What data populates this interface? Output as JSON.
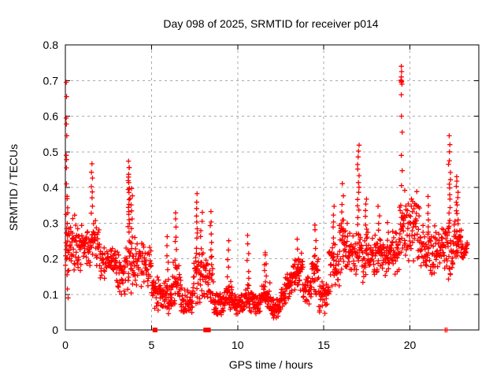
{
  "chart_data": {
    "type": "scatter",
    "title": "Day 098 of 2025, SRMTID for receiver p014",
    "xlabel": "GPS time / hours",
    "ylabel": "SRMTID / TECUs",
    "xlim": [
      0,
      24
    ],
    "ylim": [
      0,
      0.8
    ],
    "xticks": {
      "values": [
        0,
        5,
        10,
        15,
        20
      ],
      "labels": [
        "0",
        "5",
        "10",
        "15",
        "20"
      ]
    },
    "yticks": {
      "values": [
        0,
        0.1,
        0.2,
        0.3,
        0.4,
        0.5,
        0.6,
        0.7,
        0.8
      ],
      "labels": [
        "0",
        "0.1",
        "0.2",
        "0.3",
        "0.4",
        "0.5",
        "0.6",
        "0.7",
        "0.8"
      ]
    },
    "grid": true,
    "legend": "none",
    "marker": {
      "shape": "plus",
      "color": "#ff0000",
      "size": 7
    },
    "grid_color": "#a8a8a8",
    "border_color": "#000000",
    "background_color": "#ffffff",
    "seed": 98,
    "band_segments": [
      [
        0.0,
        0.6,
        42,
        0.15,
        0.34
      ],
      [
        0.6,
        1.4,
        52,
        0.16,
        0.31
      ],
      [
        1.4,
        2.0,
        42,
        0.15,
        0.33
      ],
      [
        2.0,
        2.9,
        55,
        0.13,
        0.25
      ],
      [
        2.9,
        3.5,
        42,
        0.09,
        0.22
      ],
      [
        3.5,
        4.1,
        38,
        0.1,
        0.28
      ],
      [
        4.1,
        5.0,
        56,
        0.1,
        0.26
      ],
      [
        5.0,
        5.6,
        40,
        0.05,
        0.16
      ],
      [
        5.6,
        6.2,
        45,
        0.04,
        0.14
      ],
      [
        6.2,
        6.7,
        34,
        0.06,
        0.2
      ],
      [
        6.7,
        7.4,
        50,
        0.04,
        0.12
      ],
      [
        7.4,
        8.1,
        45,
        0.07,
        0.24
      ],
      [
        8.1,
        8.6,
        35,
        0.05,
        0.22
      ],
      [
        8.6,
        9.3,
        50,
        0.04,
        0.11
      ],
      [
        9.3,
        9.7,
        30,
        0.05,
        0.14
      ],
      [
        9.7,
        10.4,
        50,
        0.04,
        0.11
      ],
      [
        10.4,
        10.9,
        35,
        0.05,
        0.13
      ],
      [
        10.9,
        11.4,
        35,
        0.04,
        0.11
      ],
      [
        11.4,
        11.9,
        35,
        0.05,
        0.14
      ],
      [
        11.9,
        12.5,
        42,
        0.03,
        0.1
      ],
      [
        12.5,
        13.3,
        60,
        0.05,
        0.13,
        0.11,
        0.2
      ],
      [
        13.3,
        13.8,
        36,
        0.1,
        0.22
      ],
      [
        13.8,
        14.3,
        34,
        0.07,
        0.16
      ],
      [
        14.3,
        14.7,
        30,
        0.09,
        0.22
      ],
      [
        14.7,
        15.3,
        40,
        0.04,
        0.15
      ],
      [
        15.3,
        15.9,
        40,
        0.1,
        0.27
      ],
      [
        15.9,
        16.4,
        36,
        0.15,
        0.33
      ],
      [
        16.4,
        17.2,
        50,
        0.14,
        0.3
      ],
      [
        17.2,
        18.0,
        50,
        0.13,
        0.28
      ],
      [
        18.0,
        18.8,
        50,
        0.14,
        0.27
      ],
      [
        18.8,
        19.4,
        40,
        0.15,
        0.29
      ],
      [
        19.4,
        19.7,
        24,
        0.18,
        0.38
      ],
      [
        19.7,
        20.6,
        62,
        0.17,
        0.4
      ],
      [
        20.6,
        21.5,
        56,
        0.13,
        0.3
      ],
      [
        21.5,
        22.1,
        40,
        0.13,
        0.32
      ],
      [
        22.1,
        22.5,
        28,
        0.13,
        0.3
      ],
      [
        22.5,
        23.0,
        40,
        0.18,
        0.33
      ],
      [
        23.0,
        23.35,
        24,
        0.19,
        0.27
      ]
    ],
    "spike_columns": [
      [
        0.1,
        8,
        0.2,
        0.37
      ],
      [
        1.55,
        8,
        0.33,
        0.465
      ],
      [
        3.7,
        20,
        0.28,
        0.47
      ],
      [
        3.85,
        8,
        0.24,
        0.4
      ],
      [
        5.95,
        6,
        0.14,
        0.26
      ],
      [
        6.4,
        8,
        0.18,
        0.33
      ],
      [
        7.6,
        12,
        0.18,
        0.38
      ],
      [
        7.9,
        8,
        0.16,
        0.33
      ],
      [
        8.45,
        8,
        0.18,
        0.33
      ],
      [
        9.45,
        6,
        0.12,
        0.25
      ],
      [
        10.6,
        7,
        0.12,
        0.26
      ],
      [
        11.6,
        8,
        0.12,
        0.22
      ],
      [
        13.5,
        5,
        0.16,
        0.25
      ],
      [
        14.5,
        6,
        0.18,
        0.3
      ],
      [
        15.6,
        6,
        0.24,
        0.35
      ],
      [
        16.1,
        6,
        0.28,
        0.405
      ],
      [
        17.0,
        14,
        0.3,
        0.52
      ],
      [
        17.45,
        8,
        0.24,
        0.37
      ],
      [
        18.2,
        6,
        0.23,
        0.35
      ],
      [
        18.7,
        5,
        0.21,
        0.3
      ],
      [
        21.05,
        6,
        0.27,
        0.37
      ],
      [
        22.3,
        12,
        0.28,
        0.46
      ],
      [
        22.75,
        12,
        0.28,
        0.43
      ]
    ],
    "outlier_points": [
      [
        0.05,
        0.695
      ],
      [
        0.07,
        0.655
      ],
      [
        0.05,
        0.595
      ],
      [
        0.06,
        0.578
      ],
      [
        0.08,
        0.545
      ],
      [
        0.05,
        0.49
      ],
      [
        0.07,
        0.478
      ],
      [
        0.06,
        0.455
      ],
      [
        0.06,
        0.41
      ],
      [
        0.1,
        0.375
      ],
      [
        0.1,
        0.155
      ],
      [
        0.12,
        0.115
      ],
      [
        0.16,
        0.09
      ],
      [
        19.5,
        0.74
      ],
      [
        19.52,
        0.725
      ],
      [
        19.5,
        0.71
      ],
      [
        19.48,
        0.701
      ],
      [
        19.52,
        0.698
      ],
      [
        19.5,
        0.695
      ],
      [
        19.54,
        0.69
      ],
      [
        19.5,
        0.66
      ],
      [
        19.51,
        0.6
      ],
      [
        19.55,
        0.555
      ],
      [
        19.5,
        0.49
      ],
      [
        19.55,
        0.447
      ],
      [
        19.51,
        0.405
      ],
      [
        22.28,
        0.545
      ],
      [
        22.32,
        0.52
      ],
      [
        22.3,
        0.5
      ],
      [
        22.29,
        0.475
      ]
    ],
    "zero_points": [
      [
        5.2,
        "square"
      ],
      [
        8.15,
        "square"
      ],
      [
        8.3,
        "square"
      ],
      [
        22.05,
        "plus"
      ],
      [
        22.15,
        "plus"
      ]
    ]
  }
}
